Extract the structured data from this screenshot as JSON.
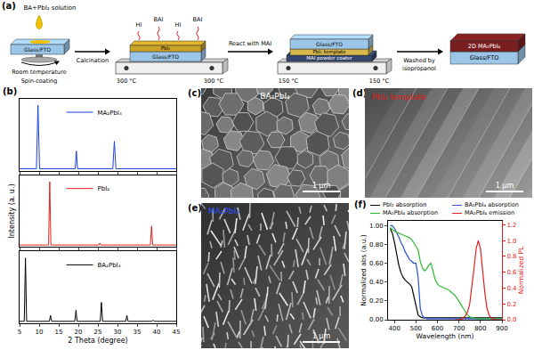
{
  "panel_labels": {
    "a": "(a)",
    "b": "(b)",
    "c": "(c)",
    "d": "(d)",
    "e": "(e)",
    "f": "(f)"
  },
  "schematic": {
    "step1": {
      "solution": "BA+PbI₂ solution",
      "substrate": "Glass/FTO",
      "condition": "Room temperature",
      "process": "Spin-coating"
    },
    "step2": {
      "film": "PbI₂",
      "substrate": "Glass/FTO",
      "vapors": [
        "HI",
        "BAI",
        "HI",
        "BAI"
      ],
      "temperatures": [
        "300 °C",
        "300 °C"
      ]
    },
    "step3": {
      "substrate": "Glass/FTO",
      "film": "PbI₂ template",
      "source": "MAI powder coater",
      "temperatures": [
        "150 °C",
        "150 °C"
      ]
    },
    "step4": {
      "film": "2D MA₂PbI₄",
      "substrate": "Glass/FTO"
    },
    "arrows": [
      [
        "Calcination"
      ],
      [
        "React with MAI"
      ],
      [
        "Washed by",
        "isopropanol"
      ]
    ]
  },
  "micrographs": [
    {
      "label": "BA₂PbI₄",
      "color": "#ffffff",
      "scale_bar": "1 μm"
    },
    {
      "label": "PbI₂ template",
      "color": "#e02020",
      "scale_bar": "1 μm"
    },
    {
      "label": "MA₂PbI₄",
      "color": "#3050ff",
      "scale_bar": "1 μm"
    }
  ],
  "chart_data": [
    {
      "type": "line",
      "x": [
        5,
        9.3,
        9.7,
        10.1,
        19.2,
        19.5,
        19.8,
        28.8,
        29.2,
        29.6,
        45
      ],
      "series": [
        {
          "name": "MA₂PbI₄",
          "color": "#1a3fe0",
          "values": [
            0.03,
            0.03,
            1.0,
            0.03,
            0.03,
            0.3,
            0.03,
            0.03,
            0.45,
            0.03,
            0.03
          ]
        }
      ],
      "xlim": [
        5,
        45
      ],
      "xticks": [
        5,
        10,
        15,
        20,
        25,
        30,
        35,
        40,
        45
      ],
      "ylim": [
        0,
        1.1
      ],
      "yticks": [],
      "tick_labels": false,
      "legend": "top"
    },
    {
      "type": "line",
      "x": [
        5,
        12.4,
        12.7,
        13.0,
        25.2,
        25.5,
        25.8,
        38.4,
        38.7,
        39.0,
        45
      ],
      "series": [
        {
          "name": "PbI₂",
          "color": "#e0201e",
          "values": [
            0.03,
            0.03,
            1.0,
            0.03,
            0.03,
            0.06,
            0.03,
            0.03,
            0.32,
            0.03,
            0.03
          ]
        }
      ],
      "xlim": [
        5,
        45
      ],
      "xticks": [
        5,
        10,
        15,
        20,
        25,
        30,
        35,
        40,
        45
      ],
      "ylim": [
        0,
        1.1
      ],
      "yticks": [],
      "ylabel": "Intensity (a. u.)",
      "tick_labels": false,
      "legend": "top"
    },
    {
      "type": "line",
      "x": [
        5,
        6.2,
        6.5,
        6.8,
        12.6,
        12.9,
        13.2,
        19.1,
        19.4,
        19.7,
        25.6,
        25.9,
        26.2,
        32.1,
        32.4,
        32.7,
        38.8,
        39.1,
        39.4,
        45
      ],
      "series": [
        {
          "name": "BA₂PbI₄",
          "color": "#000000",
          "values": [
            0.03,
            0.03,
            1.0,
            0.03,
            0.03,
            0.12,
            0.03,
            0.03,
            0.2,
            0.03,
            0.03,
            0.32,
            0.03,
            0.03,
            0.12,
            0.03,
            0.03,
            0.05,
            0.03,
            0.03
          ]
        }
      ],
      "xlim": [
        5,
        45
      ],
      "xticks": [
        5,
        10,
        15,
        20,
        25,
        30,
        35,
        40,
        45
      ],
      "ylim": [
        0,
        1.1
      ],
      "yticks": [],
      "xlabel": "2 Theta (degree)",
      "tick_labels": "x",
      "legend": "top"
    },
    {
      "type": "line",
      "x": [
        380,
        390,
        400,
        410,
        420,
        430,
        440,
        450,
        460,
        470,
        480,
        490,
        500,
        510,
        520,
        530,
        540,
        550,
        560,
        570,
        580,
        590,
        600,
        610,
        620,
        630,
        640,
        650,
        660,
        670,
        680,
        690,
        700,
        710,
        720,
        730,
        740,
        750,
        760,
        770,
        780,
        790,
        800,
        810,
        820,
        830,
        840,
        850,
        860,
        870,
        880,
        890,
        900
      ],
      "series": [
        {
          "name": "PbI₂ absorption",
          "color": "#000000",
          "values": [
            0.97,
            0.92,
            0.82,
            0.68,
            0.58,
            0.5,
            0.45,
            0.42,
            0.4,
            0.38,
            0.35,
            0.25,
            0.12,
            0.05,
            0.03,
            0.02,
            0.02,
            0.02,
            0.02,
            0.02,
            0.02,
            0.02,
            0.02,
            0.02,
            0.02,
            0.02,
            0.02,
            0.02,
            0.02,
            0.02,
            0.02,
            0.02,
            0.02,
            0.02,
            0.02,
            0.02,
            0.02,
            0.02,
            0.02,
            0.02,
            0.02,
            0.02,
            0.02,
            0.02,
            0.02,
            0.02,
            0.02,
            0.02,
            0.02,
            0.02,
            0.02,
            0.02,
            0.02
          ]
        },
        {
          "name": "BA₂PbI₄ absorption",
          "color": "#2a52d8",
          "values": [
            1.0,
            1.0,
            0.97,
            0.93,
            0.88,
            0.82,
            0.78,
            0.72,
            0.68,
            0.64,
            0.62,
            0.6,
            0.6,
            0.45,
            0.12,
            0.04,
            0.02,
            0.01,
            0.01,
            0.01,
            0.01,
            0.01,
            0.01,
            0.01,
            0.01,
            0.01,
            0.01,
            0.01,
            0.01,
            0.01,
            0.01,
            0.01,
            0.01,
            0.01,
            0.01,
            0.01,
            0.01,
            0.01,
            0.01,
            0.01,
            0.01,
            0.01,
            0.01,
            0.01,
            0.01,
            0.01,
            0.01,
            0.01,
            0.01,
            0.01,
            0.01,
            0.01,
            0.01
          ]
        },
        {
          "name": "MA₂PbI₄ absorption",
          "color": "#2eb82e",
          "values": [
            0.98,
            0.96,
            0.94,
            0.93,
            0.92,
            0.91,
            0.9,
            0.89,
            0.88,
            0.87,
            0.85,
            0.82,
            0.78,
            0.74,
            0.62,
            0.55,
            0.52,
            0.54,
            0.58,
            0.6,
            0.52,
            0.42,
            0.38,
            0.36,
            0.35,
            0.34,
            0.33,
            0.32,
            0.3,
            0.28,
            0.26,
            0.23,
            0.2,
            0.16,
            0.12,
            0.08,
            0.05,
            0.03,
            0.02,
            0.02,
            0.01,
            0.01,
            0.01,
            0.01,
            0.01,
            0.01,
            0.01,
            0.01,
            0.01,
            0.01,
            0.01,
            0.01,
            0.01
          ]
        },
        {
          "name": "MA₂PbI₄ emission",
          "color": "#e02020",
          "axis": "y2",
          "values": [
            null,
            null,
            null,
            null,
            null,
            null,
            null,
            null,
            null,
            null,
            null,
            null,
            null,
            null,
            null,
            null,
            null,
            null,
            null,
            null,
            null,
            null,
            null,
            null,
            null,
            null,
            null,
            null,
            null,
            null,
            0,
            0,
            0,
            0.01,
            0.02,
            0.05,
            0.1,
            0.2,
            0.4,
            0.65,
            0.9,
            1.0,
            0.9,
            0.62,
            0.35,
            0.15,
            0.06,
            0.02,
            0.01,
            0,
            0,
            0,
            0
          ]
        }
      ],
      "xlim": [
        370,
        900
      ],
      "xticks": [
        400,
        500,
        600,
        700,
        800,
        900
      ],
      "ylim": [
        0,
        1.05
      ],
      "yticks": [
        {
          "value": 0,
          "label": "0.00"
        },
        {
          "value": 0.2,
          "label": "0.20"
        },
        {
          "value": 0.4,
          "label": "0.40"
        },
        {
          "value": 0.6,
          "label": "0.60"
        },
        {
          "value": 0.8,
          "label": "0.80"
        },
        {
          "value": 1,
          "label": "1.00"
        }
      ],
      "y2lim": [
        0,
        1.25
      ],
      "y2ticks": [
        {
          "value": 0,
          "label": "0.0"
        },
        0.2,
        0.4,
        0.6,
        0.8,
        {
          "value": 1,
          "label": "1.0"
        },
        1.2
      ],
      "xlabel": "Wavelength (nm)",
      "ylabel": "Normalized abs (a.u.)",
      "y2label": "Normalized PL",
      "legend": "above"
    }
  ]
}
